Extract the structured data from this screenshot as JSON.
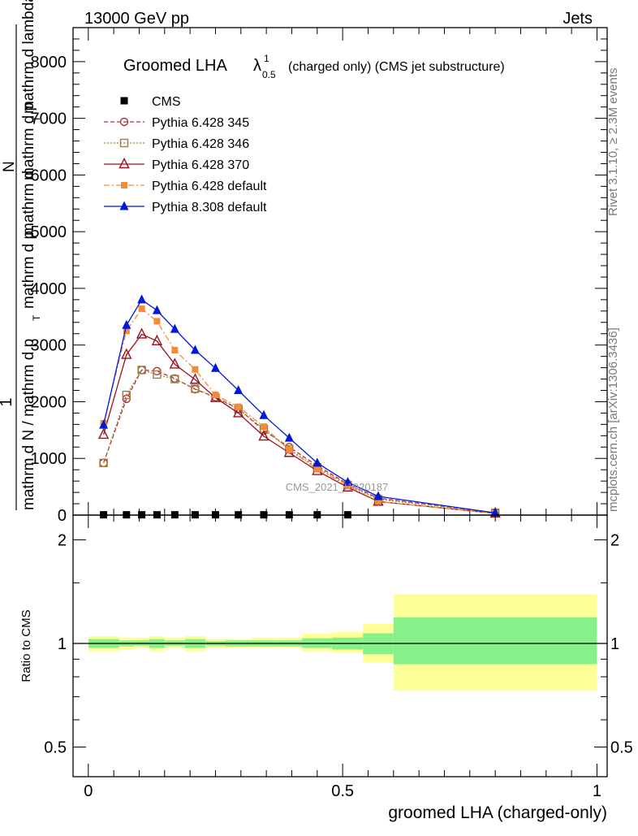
{
  "header": {
    "left": "13000 GeV pp",
    "right": "Jets"
  },
  "title": {
    "main": "Groomed LHA",
    "lambda": "λ",
    "sup": "1",
    "sub": "0.5",
    "suffix": "(charged only) (CMS jet substructure)"
  },
  "side_text": {
    "rivet": "Rivet 3.1.10, ≥ 2.3M events",
    "mcplots": "mcplots.cern.ch [arXiv:1306.3436]"
  },
  "watermark": "CMS_2021_I1920187",
  "ylabel_main": {
    "one": "1",
    "denominator": "mathrm d N / mathrm d p",
    "t_sub": "T",
    "denominator_tail": "mathrm d p",
    "numerator": "mathrm d",
    "numerator_n": "N",
    "numerator_tail": "mathrm d p",
    "numerator_t": "T",
    "numerator_end": "mathrm d lambda"
  },
  "ylabel_ratio": "Ratio to CMS",
  "xlabel": "groomed LHA (charged-only)",
  "colors": {
    "cms": "#000000",
    "py345": "#b0303a",
    "py346": "#a08040",
    "py370": "#9b1020",
    "py6def": "#f58a3a",
    "py8def": "#0018d8",
    "band_outer": "#ffff99",
    "band_inner": "#88f088"
  },
  "chart_data": [
    {
      "type": "line",
      "panel": "main",
      "xlim": [
        -0.03,
        1.02
      ],
      "ylim": [
        0,
        8600
      ],
      "yticks": [
        0,
        1000,
        2000,
        3000,
        4000,
        5000,
        6000,
        7000,
        8000
      ],
      "ytick_labels": [
        "0",
        "1000",
        "2000",
        "3000",
        "4000",
        "5000",
        "6000",
        "7000",
        "8000"
      ],
      "legend_position": "top-left",
      "series": [
        {
          "name": "CMS",
          "key": "cms",
          "marker": "square",
          "style": "none",
          "x": [
            0.03,
            0.075,
            0.105,
            0.135,
            0.17,
            0.21,
            0.25,
            0.295,
            0.345,
            0.395,
            0.45,
            0.51
          ],
          "y": [
            5,
            5,
            5,
            5,
            5,
            5,
            5,
            5,
            5,
            5,
            5,
            5
          ]
        },
        {
          "name": "Pythia 6.428 345",
          "key": "py345",
          "marker": "circle-open",
          "style": "dashed",
          "x": [
            0.03,
            0.075,
            0.105,
            0.135,
            0.17,
            0.21,
            0.25,
            0.295,
            0.345,
            0.395,
            0.45,
            0.51,
            0.57,
            0.8
          ],
          "y": [
            920,
            2050,
            2560,
            2540,
            2410,
            2220,
            2080,
            1880,
            1490,
            1200,
            870,
            550,
            300,
            40
          ]
        },
        {
          "name": "Pythia 6.428 346",
          "key": "py346",
          "marker": "square-open",
          "style": "dotted",
          "x": [
            0.03,
            0.075,
            0.105,
            0.135,
            0.17,
            0.21,
            0.25,
            0.295,
            0.345,
            0.395,
            0.45,
            0.51,
            0.57,
            0.8
          ],
          "y": [
            920,
            2120,
            2560,
            2480,
            2400,
            2230,
            2070,
            1870,
            1520,
            1160,
            840,
            530,
            280,
            40
          ]
        },
        {
          "name": "Pythia 6.428 370",
          "key": "py370",
          "marker": "triangle-open",
          "style": "solid",
          "x": [
            0.03,
            0.075,
            0.105,
            0.135,
            0.17,
            0.21,
            0.25,
            0.295,
            0.345,
            0.395,
            0.45,
            0.51,
            0.57,
            0.8
          ],
          "y": [
            1420,
            2830,
            3190,
            3070,
            2660,
            2390,
            2070,
            1800,
            1390,
            1100,
            780,
            490,
            240,
            30
          ]
        },
        {
          "name": "Pythia 6.428 default",
          "key": "py6def",
          "marker": "square-filled",
          "style": "dashdot",
          "x": [
            0.03,
            0.075,
            0.105,
            0.135,
            0.17,
            0.21,
            0.25,
            0.295,
            0.345,
            0.395,
            0.45,
            0.51,
            0.57,
            0.8
          ],
          "y": [
            1620,
            3250,
            3640,
            3420,
            2910,
            2570,
            2120,
            1910,
            1560,
            1150,
            810,
            520,
            240,
            30
          ]
        },
        {
          "name": "Pythia 8.308 default",
          "key": "py8def",
          "marker": "triangle-filled",
          "style": "solid",
          "x": [
            0.03,
            0.075,
            0.105,
            0.135,
            0.17,
            0.21,
            0.25,
            0.295,
            0.345,
            0.395,
            0.45,
            0.51,
            0.57,
            0.8
          ],
          "y": [
            1590,
            3350,
            3800,
            3610,
            3280,
            2910,
            2590,
            2200,
            1760,
            1360,
            920,
            580,
            330,
            40
          ]
        }
      ]
    },
    {
      "type": "area",
      "panel": "ratio",
      "xlim": [
        -0.03,
        1.02
      ],
      "ylim": [
        0.41,
        2.36
      ],
      "scale": "log",
      "yticks": [
        0.5,
        1,
        2
      ],
      "ytick_labels": [
        "0.5",
        "1",
        "2"
      ],
      "xticks": [
        0,
        0.5,
        1
      ],
      "xtick_labels": [
        "0",
        "0.5",
        "1"
      ],
      "bands": {
        "edges": [
          0.0,
          0.06,
          0.09,
          0.12,
          0.15,
          0.19,
          0.23,
          0.27,
          0.32,
          0.37,
          0.42,
          0.48,
          0.54,
          0.6,
          1.0
        ],
        "outer_low": [
          0.95,
          0.96,
          0.97,
          0.95,
          0.97,
          0.95,
          0.97,
          0.97,
          0.97,
          0.97,
          0.95,
          0.94,
          0.88,
          0.73
        ],
        "outer_high": [
          1.05,
          1.04,
          1.04,
          1.05,
          1.04,
          1.05,
          1.03,
          1.03,
          1.04,
          1.04,
          1.07,
          1.08,
          1.14,
          1.39
        ],
        "inner_low": [
          0.97,
          0.98,
          0.985,
          0.97,
          0.985,
          0.97,
          0.985,
          0.98,
          0.98,
          0.98,
          0.97,
          0.96,
          0.93,
          0.87
        ],
        "inner_high": [
          1.03,
          1.02,
          1.02,
          1.03,
          1.02,
          1.03,
          1.015,
          1.02,
          1.02,
          1.02,
          1.035,
          1.04,
          1.07,
          1.19
        ]
      },
      "reference": 1
    }
  ]
}
